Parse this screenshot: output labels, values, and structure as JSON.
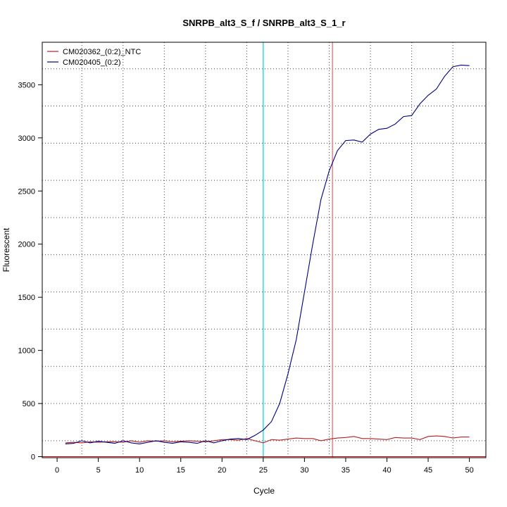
{
  "chart_data": {
    "type": "line",
    "title": "SNRPB_alt3_S_f / SNRPB_alt3_S_1_r",
    "xlabel": "Cycle",
    "ylabel": "Fluorescent",
    "xlim": [
      -1.8,
      52
    ],
    "ylim": [
      -10,
      3900
    ],
    "xticks": [
      0,
      5,
      10,
      15,
      20,
      25,
      30,
      35,
      40,
      45,
      50
    ],
    "yticks": [
      0,
      500,
      1000,
      1500,
      2000,
      2500,
      3000,
      3500
    ],
    "x_gridlines": [
      3,
      8,
      13,
      18,
      23,
      28,
      33,
      38,
      43,
      48
    ],
    "y_gridlines": [
      150,
      500,
      850,
      1200,
      1550,
      1900,
      2250,
      2600,
      2950,
      3300,
      3650
    ],
    "grid": true,
    "legend_position": "top-left",
    "threshold_line": {
      "y": 0,
      "color": "#cc0000"
    },
    "vertical_markers": [
      {
        "x": 25,
        "color": "#33dddd"
      },
      {
        "x": 33.4,
        "color": "#f08080"
      }
    ],
    "series": [
      {
        "name": "CM020362_(0:2)_NTC",
        "color": "#b22222",
        "x": [
          1,
          2,
          3,
          4,
          5,
          6,
          7,
          8,
          9,
          10,
          11,
          12,
          13,
          14,
          15,
          16,
          17,
          18,
          19,
          20,
          21,
          22,
          23,
          24,
          25,
          26,
          27,
          28,
          29,
          30,
          31,
          32,
          33,
          34,
          35,
          36,
          37,
          38,
          39,
          40,
          41,
          42,
          43,
          44,
          45,
          46,
          47,
          48,
          49,
          50
        ],
        "values": [
          130,
          135,
          130,
          140,
          135,
          140,
          140,
          135,
          150,
          135,
          150,
          145,
          150,
          140,
          145,
          150,
          145,
          140,
          150,
          160,
          160,
          155,
          170,
          150,
          130,
          160,
          155,
          165,
          175,
          170,
          170,
          150,
          165,
          175,
          180,
          190,
          170,
          170,
          165,
          160,
          180,
          175,
          175,
          160,
          190,
          195,
          190,
          175,
          185,
          185
        ]
      },
      {
        "name": "CM020405_(0:2)",
        "color": "#000080",
        "x": [
          1,
          2,
          3,
          4,
          5,
          6,
          7,
          8,
          9,
          10,
          11,
          12,
          13,
          14,
          15,
          16,
          17,
          18,
          19,
          20,
          21,
          22,
          23,
          24,
          25,
          26,
          27,
          28,
          29,
          30,
          31,
          32,
          33,
          34,
          35,
          36,
          37,
          38,
          39,
          40,
          41,
          42,
          43,
          44,
          45,
          46,
          47,
          48,
          49,
          50
        ],
        "values": [
          120,
          125,
          150,
          130,
          145,
          135,
          125,
          150,
          130,
          120,
          135,
          150,
          135,
          125,
          140,
          135,
          125,
          150,
          130,
          150,
          165,
          170,
          160,
          200,
          250,
          330,
          500,
          780,
          1100,
          1550,
          2000,
          2420,
          2690,
          2880,
          2975,
          2980,
          2960,
          3035,
          3080,
          3090,
          3130,
          3200,
          3210,
          3320,
          3400,
          3460,
          3580,
          3670,
          3685,
          3680
        ]
      }
    ]
  }
}
